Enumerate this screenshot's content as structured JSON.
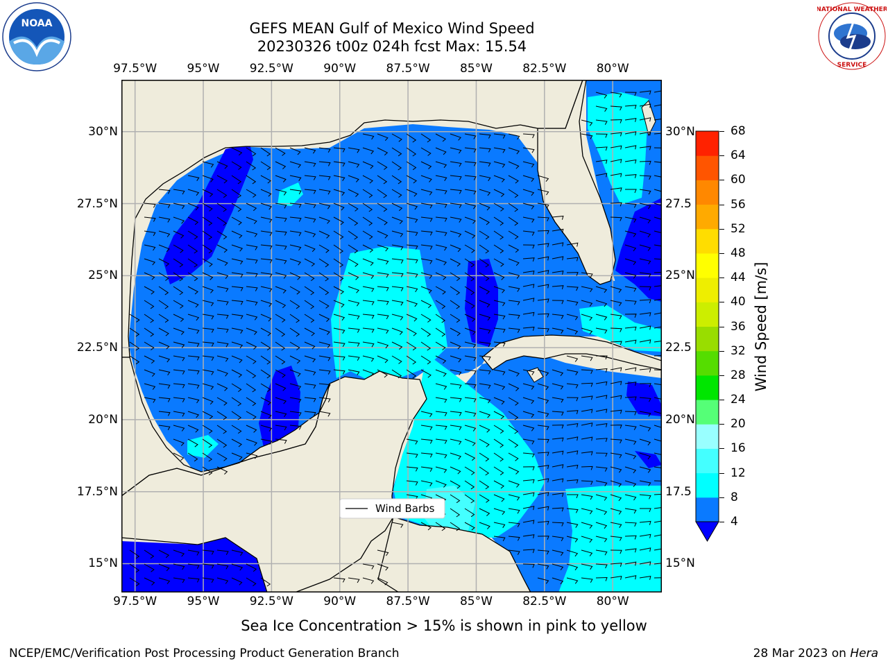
{
  "title": {
    "line1": "GEFS MEAN Gulf of Mexico Wind Speed",
    "line2": "20230326 t00z 024h fcst   Max: 15.54"
  },
  "map": {
    "lon_labels": [
      "97.5°W",
      "95°W",
      "92.5°W",
      "90°W",
      "87.5°W",
      "85°W",
      "82.5°W",
      "80°W"
    ],
    "lat_labels_left": [
      "30°N",
      "27.5°N",
      "25°N",
      "22.5°N",
      "20°N",
      "17.5°N",
      "15°N"
    ],
    "lat_labels_right": [
      "30°N",
      "27.5",
      "25°N",
      "22.5",
      "20°N",
      "17.5",
      "15°N"
    ],
    "lon_values": [
      -97.5,
      -95,
      -92.5,
      -90,
      -87.5,
      -85,
      -82.5,
      -80
    ],
    "lat_values": [
      30,
      27.5,
      25,
      22.5,
      20,
      17.5,
      15
    ],
    "extent": {
      "lon": [
        -98,
        -78.2
      ],
      "lat": [
        14,
        31.8
      ]
    },
    "land_color": "#efecdc",
    "legend_label": "Wind Barbs"
  },
  "colorbar": {
    "label": "Wind Speed [m/s]",
    "ticks": [
      "68",
      "64",
      "60",
      "56",
      "52",
      "48",
      "44",
      "40",
      "36",
      "32",
      "28",
      "24",
      "20",
      "16",
      "12",
      "8",
      "4"
    ],
    "colors": [
      "#0000ff",
      "#0a7aff",
      "#00ffff",
      "#44ffff",
      "#99ffff",
      "#55ff77",
      "#00e600",
      "#55dd00",
      "#99dd00",
      "#ccee00",
      "#eeee00",
      "#ffff00",
      "#ffdd00",
      "#ffaa00",
      "#ff8800",
      "#ff5500",
      "#ff2200",
      "#ff0000"
    ],
    "underflow_color": "#0000ff"
  },
  "caption": "Sea Ice Concentration > 15% is shown in pink to yellow",
  "footer": {
    "left": "NCEP/EMC/Verification Post Processing Product Generation Branch",
    "right_prefix": "28 Mar 2023 on ",
    "right_host": "Hera"
  },
  "logos": {
    "noaa": "NOAA",
    "nws": "NATIONAL WEATHER SERVICE"
  }
}
